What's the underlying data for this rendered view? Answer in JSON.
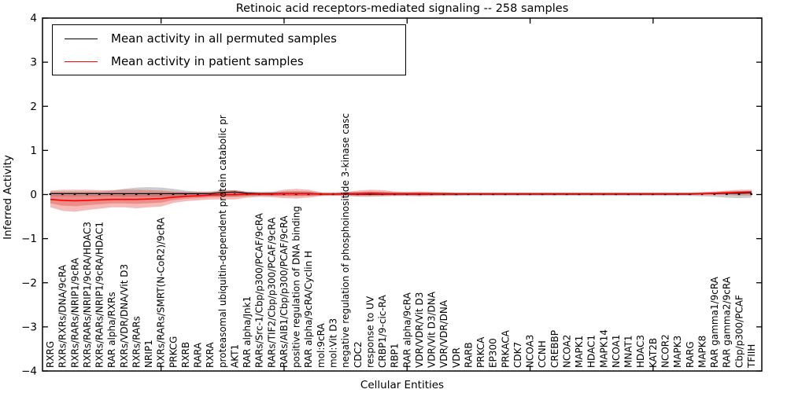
{
  "title": "Retinoic acid receptors-mediated signaling -- 258 samples",
  "axes": {
    "ylabel": "Inferred Activity",
    "xlabel": "Cellular Entities",
    "yticks": [
      "4",
      "3",
      "2",
      "1",
      "0",
      "−1",
      "−2",
      "−3",
      "−4"
    ],
    "ylim": [
      -4,
      4
    ]
  },
  "legend": [
    {
      "label": "Mean activity in all permuted samples",
      "color": "#000000"
    },
    {
      "label": "Mean activity in patient samples",
      "color": "#ff0000"
    }
  ],
  "colors": {
    "permuted_line": "#000000",
    "patient_line": "#ff0000",
    "patient_band": "rgba(222,45,38,0.32)",
    "permuted_band": "rgba(128,128,128,0.40)",
    "zero_dots": "#000000"
  },
  "chart_data": {
    "type": "line",
    "title": "Retinoic acid receptors-mediated signaling -- 258 samples",
    "xlabel": "Cellular Entities",
    "ylabel": "Inferred Activity",
    "ylim": [
      -4,
      4
    ],
    "grid": false,
    "legend_position": "upper left",
    "categories": [
      "RXRG",
      "RXRs/RXRs/DNA/9cRA",
      "RXRs/RARs/NRIP1/9cRA",
      "RXRs/RARs/NRIP1/9cRA/HDAC3",
      "RXRs/RARs/NRIP1/9cRA/HDAC1",
      "RAR alpha/RXRs",
      "RXRs/VDR/DNA/Vit D3",
      "RXRs/RARs",
      "NRIP1",
      "RXRs/RARs/SMRT(N-CoR2)/9cRA",
      "PRKCG",
      "RXRB",
      "RARA",
      "RXRA",
      "proteasomal ubiquitin-dependent protein catabolic pr",
      "AKT1",
      "RAR alpha/Jnk1",
      "RARs/Src-1/Cbp/p300/PCAF/9cRA",
      "RARs/TIF2/Cbp/p300/PCAF/9cRA",
      "RARs/AIB1/Cbp/p300/PCAF/9cRA",
      "positive regulation of DNA binding",
      "RAR alpha/9cRA/Cyclin H",
      "mol:9cRA",
      "mol:Vit D3",
      "negative regulation of phosphoinositide 3-kinase casc",
      "CDC2",
      "response to UV",
      "CRBP1/9-cic-RA",
      "RBP1",
      "RAR alpha/9cRA",
      "VDR/VDR/Vit D3",
      "VDR/Vit D3/DNA",
      "VDR/VDR/DNA",
      "VDR",
      "RARB",
      "PRKCA",
      "EP300",
      "PRKACA",
      "CDK7",
      "NCOA3",
      "CCNH",
      "CREBBP",
      "NCOA2",
      "MAPK1",
      "HDAC1",
      "MAPK14",
      "NCOA1",
      "MNAT1",
      "HDAC3",
      "KAT2B",
      "NCOR2",
      "MAPK3",
      "RARG",
      "MAPK8",
      "RAR gamma1/9cRA",
      "RAR gamma2/9cRA",
      "Cbp/p300/PCAF",
      "TFIIH"
    ],
    "series": [
      {
        "name": "Mean activity in all permuted samples",
        "color": "#000000",
        "values": [
          0.01,
          0.01,
          0.01,
          0.01,
          0.01,
          0.01,
          0.01,
          0.01,
          0.01,
          0.01,
          0.01,
          0.01,
          0.01,
          0.01,
          0.04,
          0.05,
          0.02,
          0.01,
          0.01,
          0.01,
          0.01,
          0.01,
          0,
          0,
          0,
          0,
          0,
          0,
          0,
          0,
          0,
          0,
          0,
          0,
          0,
          0,
          0,
          0,
          0,
          0,
          0,
          0,
          0,
          0,
          0,
          0,
          0,
          0,
          0,
          0,
          0,
          0,
          0,
          0.01,
          0.01,
          0.02,
          0.02,
          0.03
        ],
        "band_upper": [
          0.06,
          0.06,
          0.06,
          0.06,
          0.06,
          0.08,
          0.12,
          0.15,
          0.16,
          0.15,
          0.12,
          0.08,
          0.06,
          0.06,
          0.09,
          0.09,
          0.06,
          0.05,
          0.05,
          0.06,
          0.06,
          0.06,
          0.04,
          0.04,
          0.05,
          0.05,
          0.05,
          0.05,
          0.04,
          0.04,
          0.04,
          0.04,
          0.04,
          0.03,
          0.03,
          0.03,
          0.03,
          0.03,
          0.03,
          0.03,
          0.03,
          0.03,
          0.03,
          0.03,
          0.03,
          0.03,
          0.03,
          0.03,
          0.03,
          0.03,
          0.03,
          0.03,
          0.03,
          0.04,
          0.05,
          0.06,
          0.07,
          0.07
        ],
        "band_lower": [
          -0.05,
          -0.05,
          -0.05,
          -0.05,
          -0.05,
          -0.05,
          -0.06,
          -0.06,
          -0.06,
          -0.06,
          -0.06,
          -0.06,
          -0.05,
          -0.05,
          -0.05,
          -0.05,
          -0.05,
          -0.04,
          -0.04,
          -0.04,
          -0.04,
          -0.04,
          -0.04,
          -0.04,
          -0.04,
          -0.04,
          -0.04,
          -0.04,
          -0.04,
          -0.04,
          -0.04,
          -0.04,
          -0.04,
          -0.04,
          -0.04,
          -0.04,
          -0.04,
          -0.04,
          -0.04,
          -0.04,
          -0.04,
          -0.04,
          -0.04,
          -0.04,
          -0.04,
          -0.04,
          -0.04,
          -0.04,
          -0.04,
          -0.04,
          -0.04,
          -0.04,
          -0.04,
          -0.05,
          -0.06,
          -0.08,
          -0.09,
          -0.08
        ]
      },
      {
        "name": "Mean activity in patient samples",
        "color": "#ff0000",
        "values": [
          -0.12,
          -0.14,
          -0.15,
          -0.14,
          -0.13,
          -0.12,
          -0.12,
          -0.12,
          -0.11,
          -0.1,
          -0.07,
          -0.05,
          -0.04,
          -0.02,
          -0.01,
          -0.01,
          0,
          0,
          0,
          0.01,
          0.01,
          0.01,
          0,
          0,
          0.01,
          0.01,
          0.02,
          0.01,
          0.01,
          0.01,
          0.01,
          0.01,
          0.01,
          0.01,
          0.01,
          0.01,
          0.01,
          0.01,
          0.01,
          0.01,
          0.01,
          0.01,
          0.01,
          0.01,
          0.01,
          0.01,
          0.01,
          0.01,
          0.01,
          0.01,
          0.01,
          0.01,
          0.01,
          0.01,
          0.02,
          0.03,
          0.04,
          0.05
        ],
        "band_upper": [
          0.08,
          0.1,
          0.1,
          0.1,
          0.09,
          0.09,
          0.1,
          0.1,
          0.09,
          0.08,
          0.06,
          0.05,
          0.05,
          0.05,
          0.08,
          0.09,
          0.05,
          0.04,
          0.05,
          0.1,
          0.12,
          0.1,
          0.04,
          0.03,
          0.05,
          0.08,
          0.1,
          0.09,
          0.06,
          0.05,
          0.06,
          0.05,
          0.04,
          0.03,
          0.03,
          0.03,
          0.03,
          0.03,
          0.03,
          0.03,
          0.03,
          0.03,
          0.03,
          0.03,
          0.03,
          0.03,
          0.03,
          0.03,
          0.03,
          0.03,
          0.03,
          0.03,
          0.03,
          0.05,
          0.06,
          0.08,
          0.1,
          0.1
        ],
        "band_lower": [
          -0.3,
          -0.38,
          -0.4,
          -0.36,
          -0.33,
          -0.3,
          -0.3,
          -0.32,
          -0.3,
          -0.28,
          -0.2,
          -0.16,
          -0.14,
          -0.12,
          -0.12,
          -0.12,
          -0.08,
          -0.06,
          -0.07,
          -0.09,
          -0.1,
          -0.08,
          -0.04,
          -0.03,
          -0.04,
          -0.06,
          -0.06,
          -0.05,
          -0.04,
          -0.04,
          -0.05,
          -0.04,
          -0.03,
          -0.03,
          -0.02,
          -0.02,
          -0.02,
          -0.02,
          -0.02,
          -0.02,
          -0.02,
          -0.02,
          -0.02,
          -0.02,
          -0.02,
          -0.02,
          -0.02,
          -0.02,
          -0.02,
          -0.02,
          -0.02,
          -0.02,
          -0.02,
          -0.02,
          -0.02,
          -0.02,
          -0.03,
          -0.03
        ]
      }
    ],
    "xtick_positions_1based": [
      10,
      20,
      30,
      40,
      50
    ]
  }
}
